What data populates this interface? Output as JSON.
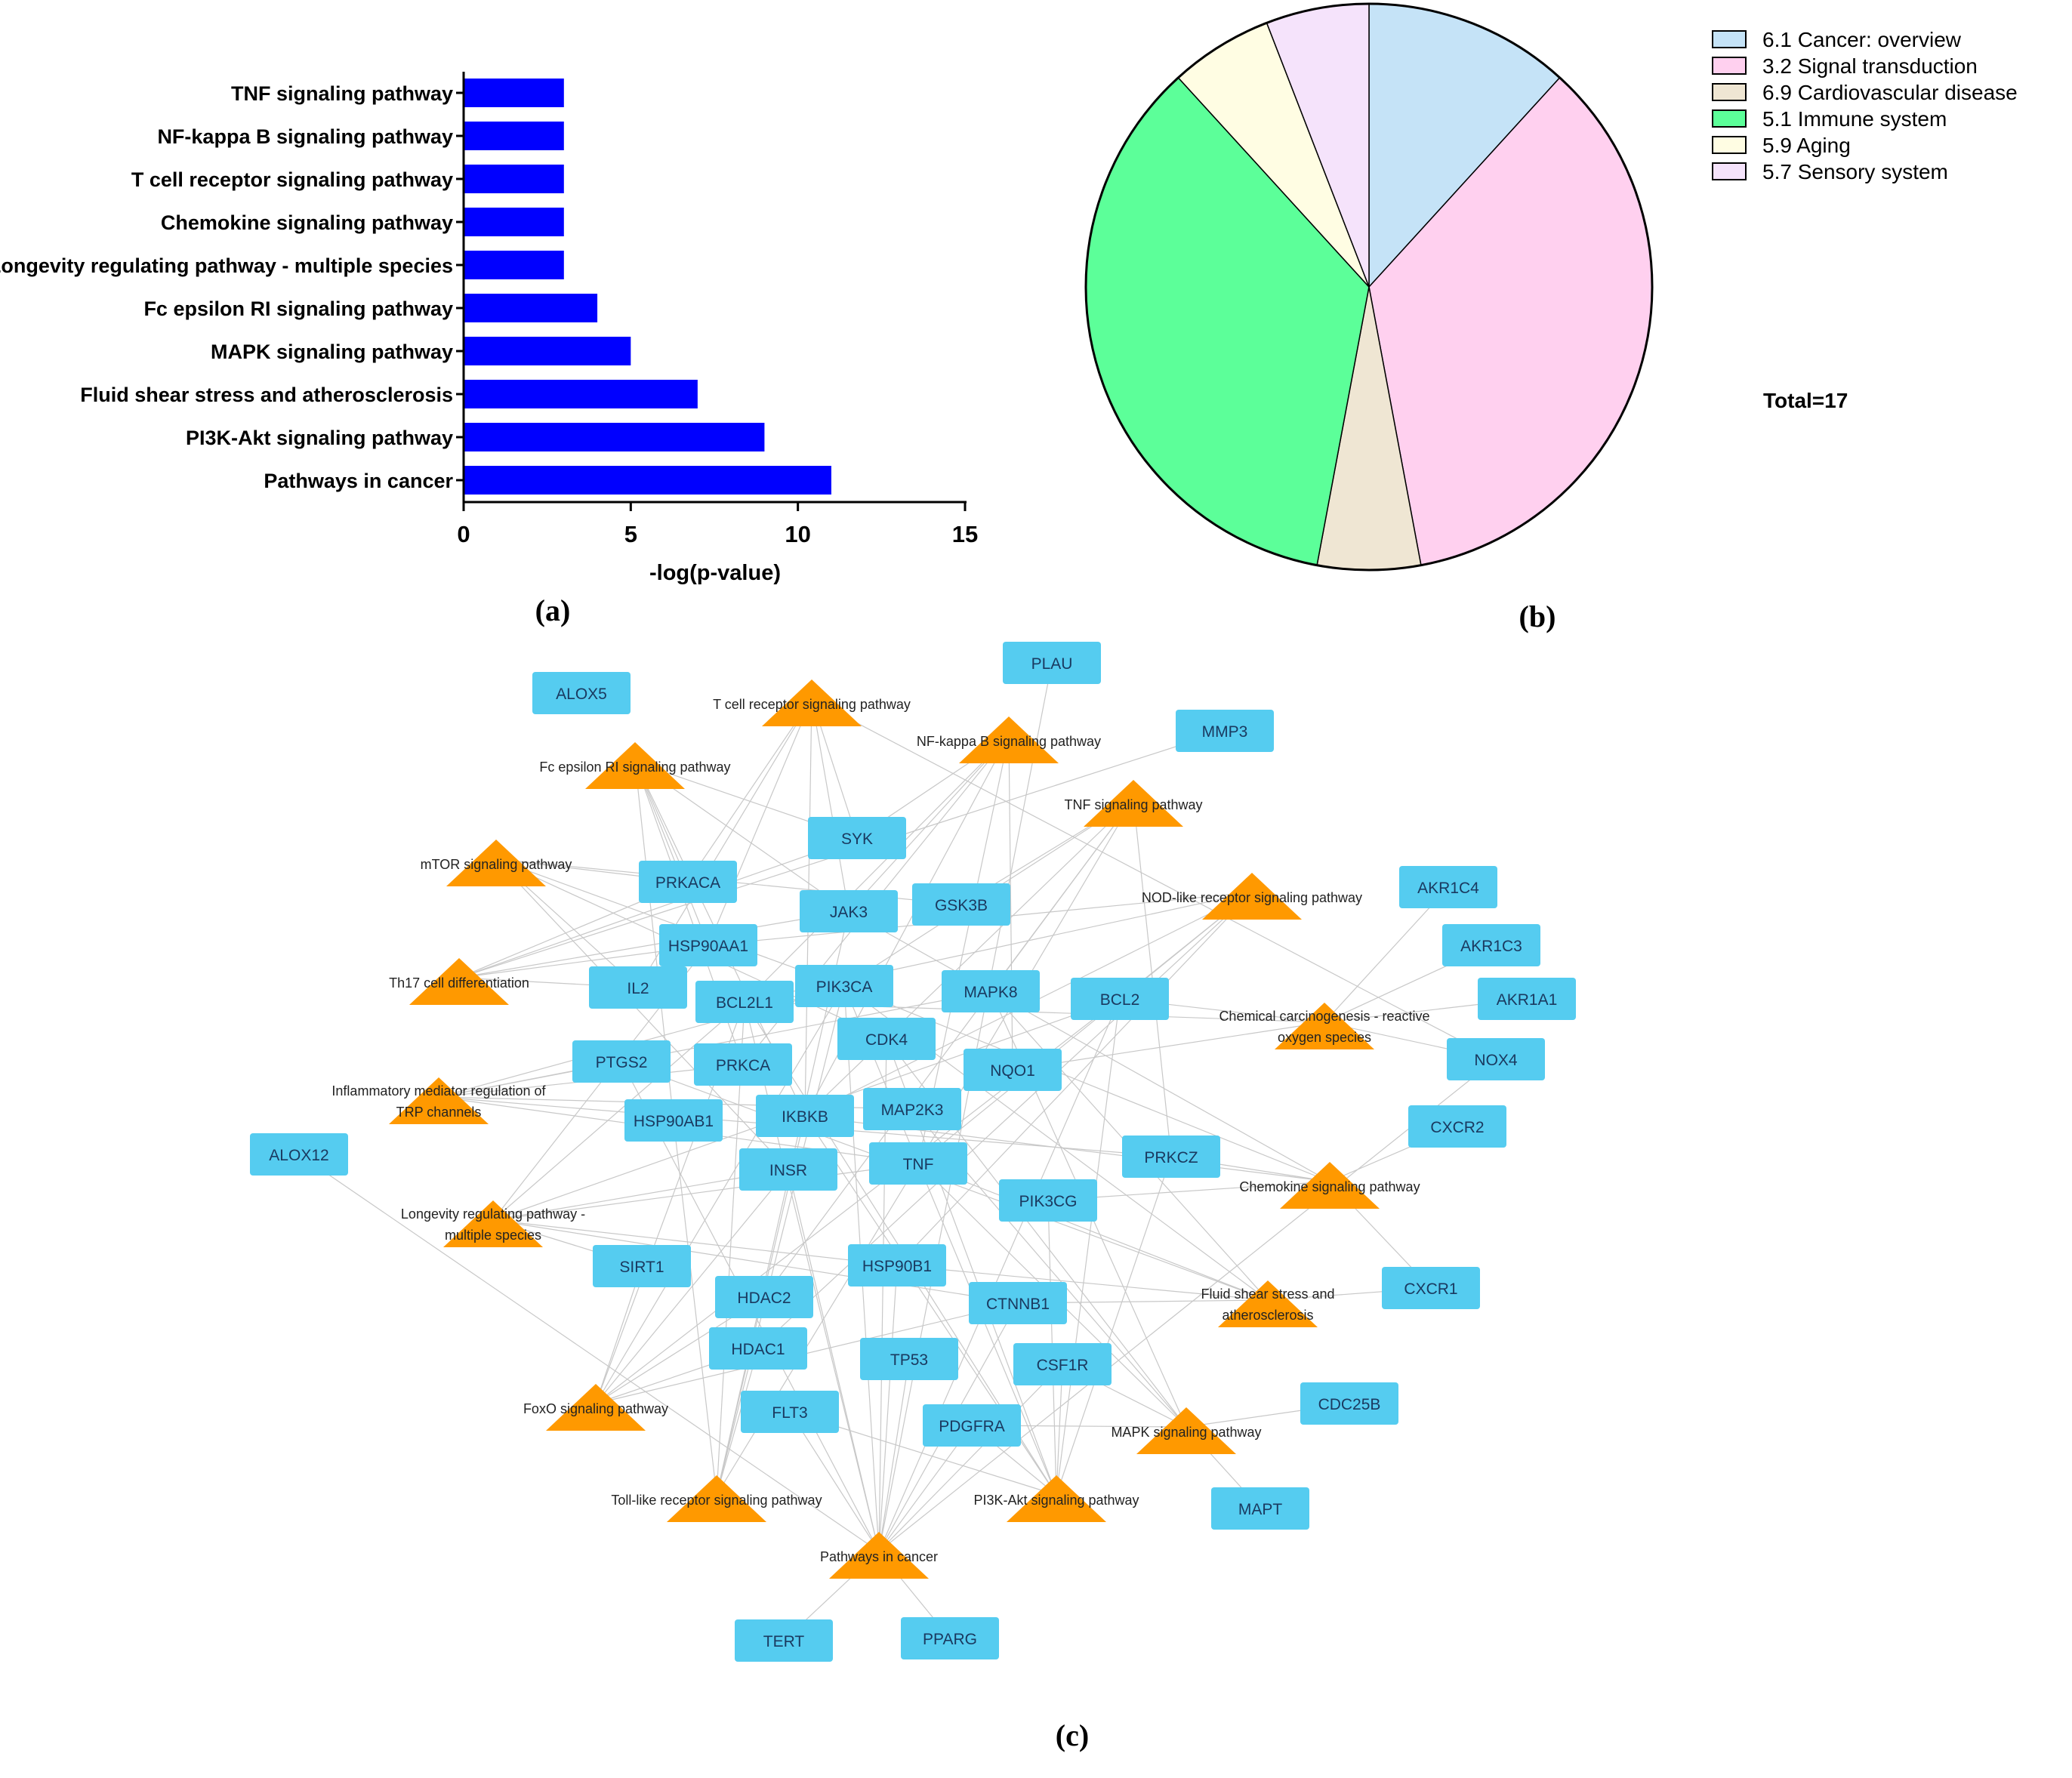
{
  "panel_a": {
    "caption": "(a)",
    "chart_data": {
      "type": "bar",
      "orientation": "horizontal",
      "categories": [
        "TNF signaling pathway",
        "NF-kappa B signaling pathway",
        "T cell receptor signaling pathway",
        "Chemokine signaling pathway",
        "Longevity regulating pathway - multiple species",
        "Fc epsilon RI signaling pathway",
        "MAPK signaling pathway",
        "Fluid shear stress and atherosclerosis",
        "PI3K-Akt signaling pathway",
        "Pathways in cancer"
      ],
      "values": [
        3,
        3,
        3,
        3,
        3,
        4,
        5,
        7,
        9,
        11
      ],
      "xlabel": "-log(p-value)",
      "xlim": [
        0,
        15
      ],
      "xticks": [
        "0",
        "5",
        "10",
        "15"
      ],
      "bar_color": "#0000ff"
    }
  },
  "panel_b": {
    "caption": "(b)",
    "total_label": "Total=17",
    "chart_data": {
      "type": "pie",
      "labels": [
        "6.1 Cancer: overview",
        "3.2 Signal transduction",
        "6.9 Cardiovascular disease",
        "5.1 Immune system",
        "5.9 Aging",
        "5.7 Sensory system"
      ],
      "values": [
        2,
        6,
        1,
        6,
        1,
        1
      ],
      "colors": [
        "#c5e3f7",
        "#ffd0ef",
        "#efe6d3",
        "#5cff99",
        "#fffde3",
        "#f5e3fb"
      ],
      "start_angle_deg": 0,
      "direction": "clockwise",
      "legend_position": "top-right"
    }
  },
  "panel_c": {
    "caption": "(c)",
    "genes": [
      "ALOX5",
      "PLAU",
      "MMP3",
      "SYK",
      "PRKACA",
      "JAK3",
      "GSK3B",
      "HSP90AA1",
      "IL2",
      "BCL2L1",
      "PIK3CA",
      "MAPK8",
      "BCL2",
      "AKR1C4",
      "AKR1C3",
      "AKR1A1",
      "NOX4",
      "PTGS2",
      "PRKCA",
      "CDK4",
      "NQO1",
      "IKBKB",
      "MAP2K3",
      "HSP90AB1",
      "ALOX12",
      "INSR",
      "TNF",
      "PRKCZ",
      "PIK3CG",
      "CXCR2",
      "SIRT1",
      "HSP90B1",
      "HDAC2",
      "CTNNB1",
      "CXCR1",
      "HDAC1",
      "TP53",
      "CSF1R",
      "FLT3",
      "PDGFRA",
      "CDC25B",
      "MAPT",
      "TERT",
      "PPARG"
    ],
    "pathways": [
      [
        "T cell receptor signaling pathway"
      ],
      [
        "NF-kappa B signaling pathway"
      ],
      [
        "Fc epsilon RI signaling pathway"
      ],
      [
        "TNF signaling pathway"
      ],
      [
        "mTOR signaling pathway"
      ],
      [
        "NOD-like receptor signaling pathway"
      ],
      [
        "Th17 cell differentiation"
      ],
      [
        "Chemical carcinogenesis - reactive",
        "oxygen species"
      ],
      [
        "Inflammatory mediator regulation of",
        "TRP channels"
      ],
      [
        "Chemokine signaling pathway"
      ],
      [
        "Longevity regulating pathway -",
        "multiple species"
      ],
      [
        "Fluid shear stress and",
        "atherosclerosis"
      ],
      [
        "FoxO signaling pathway"
      ],
      [
        "MAPK signaling pathway"
      ],
      [
        "Toll-like receptor signaling pathway"
      ],
      [
        "PI3K-Akt signaling pathway"
      ],
      [
        "Pathways in cancer"
      ]
    ]
  }
}
